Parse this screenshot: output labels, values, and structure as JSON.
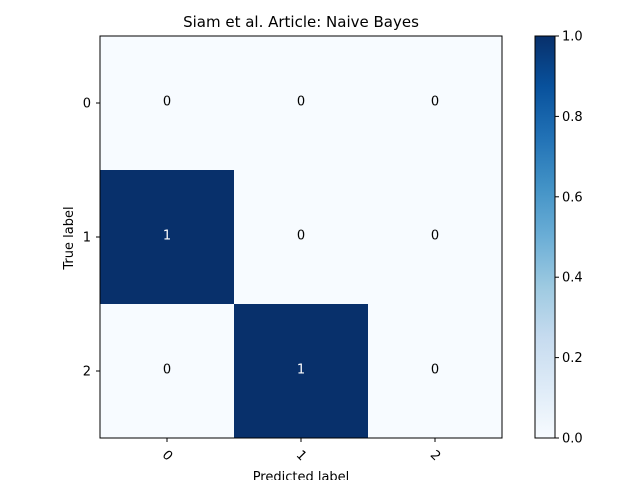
{
  "chart_data": {
    "type": "heatmap",
    "title": "Siam et al. Article: Naive Bayes",
    "xlabel": "Predicted label",
    "ylabel": "True label",
    "x_categories": [
      "0",
      "1",
      "2"
    ],
    "y_categories": [
      "0",
      "1",
      "2"
    ],
    "values": [
      [
        0,
        0,
        0
      ],
      [
        1,
        0,
        0
      ],
      [
        0,
        1,
        0
      ]
    ],
    "value_labels": [
      [
        "0",
        "0",
        "0"
      ],
      [
        "1",
        "0",
        "0"
      ],
      [
        "0",
        "1",
        "0"
      ]
    ],
    "colorbar": {
      "range": [
        0,
        1
      ],
      "ticks": [
        "0.0",
        "0.2",
        "0.4",
        "0.6",
        "0.8",
        "1.0"
      ],
      "colormap": "Blues"
    },
    "colors": {
      "low": "#f7fbff",
      "high": "#08306b",
      "text_on_low": "#000000",
      "text_on_high": "#ffffff"
    }
  }
}
